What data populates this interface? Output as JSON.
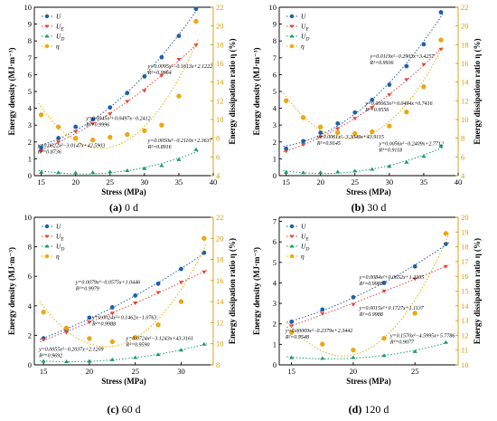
{
  "colors": {
    "U": "#1f5fa8",
    "Ue": "#e4463e",
    "Ud": "#1e9a6a",
    "eta": "#f2a900",
    "eta_axis": "#d89a00"
  },
  "axis_labels": {
    "x": "Stress (MPa)",
    "y_left": "Energy density (MJ·m⁻³)",
    "y_right": "Energy dissipation ratio η (%)"
  },
  "legend": {
    "U": "U",
    "Ue": "U",
    "Ue_sub": "E",
    "Ud": "U",
    "Ud_sub": "D",
    "eta": "η"
  },
  "chart_data": [
    {
      "type": "scatter",
      "caption_id": "(a)",
      "caption_text": " 0 d",
      "xlim": [
        14,
        40
      ],
      "xticks": [
        15,
        20,
        25,
        30,
        35,
        40
      ],
      "ylim": [
        0,
        10
      ],
      "yticks": [
        0,
        1,
        2,
        3,
        4,
        5,
        6,
        7,
        8,
        9,
        10
      ],
      "y2lim": [
        4,
        22
      ],
      "y2ticks": [
        4,
        6,
        8,
        10,
        12,
        14,
        16,
        18,
        20,
        22
      ],
      "series": [
        {
          "name": "U",
          "x": [
            15,
            17.5,
            20,
            22.5,
            25,
            27.5,
            30,
            32.5,
            35,
            37.5
          ],
          "values": [
            1.66,
            2.23,
            2.9,
            3.34,
            4.05,
            4.91,
            5.89,
            7.03,
            8.3,
            9.9
          ]
        },
        {
          "name": "Ue",
          "x": [
            15,
            17.5,
            20,
            22.5,
            25,
            27.5,
            30,
            32.5,
            35,
            37.5
          ],
          "values": [
            1.46,
            2.0,
            2.62,
            3.08,
            3.67,
            4.4,
            5.05,
            5.95,
            6.9,
            7.75
          ]
        },
        {
          "name": "Ud",
          "x": [
            15,
            17.5,
            20,
            22.5,
            25,
            27.5,
            30,
            32.5,
            35,
            37.5
          ],
          "values": [
            0.2,
            0.18,
            0.17,
            0.19,
            0.23,
            0.3,
            0.42,
            0.6,
            0.95,
            1.55
          ]
        },
        {
          "name": "η",
          "axis": "right",
          "x": [
            15,
            17.5,
            20,
            22.5,
            25,
            27.5,
            30,
            32.5,
            35,
            37.5
          ],
          "values": [
            10.5,
            9.2,
            8.0,
            7.8,
            8.1,
            8.4,
            8.8,
            9.4,
            12.5,
            20.5
          ]
        }
      ],
      "annotations": [
        {
          "series": "U",
          "at": [
            30.5,
            6.4
          ],
          "line1": "y=0.0095x²−0.1613x+2.1222",
          "line2": "R²=0.9964"
        },
        {
          "series": "Ue",
          "at": [
            21.5,
            3.3
          ],
          "line1": "y=0.0045x²+0.0497x−0.2412",
          "line2": "R²=0.9996"
        },
        {
          "series": "η",
          "at": [
            14.5,
            1.7
          ],
          "line1": "y=0.0622x²−3.0147x+42.5903",
          "line2": "R²=0.8736"
        },
        {
          "series": "Ud",
          "at": [
            30.5,
            2.0
          ],
          "line1": "y=0.0050x²−0.2110x+2.3637",
          "line2": "R²=0.8916"
        }
      ]
    },
    {
      "type": "scatter",
      "caption_id": "(b)",
      "caption_text": " 30 d",
      "xlim": [
        14,
        40
      ],
      "xticks": [
        15,
        20,
        25,
        30,
        35,
        40
      ],
      "ylim": [
        0,
        10
      ],
      "yticks": [
        0,
        1,
        2,
        3,
        4,
        5,
        6,
        7,
        8,
        9,
        10
      ],
      "y2lim": [
        4,
        22
      ],
      "y2ticks": [
        4,
        6,
        8,
        10,
        12,
        14,
        16,
        18,
        20,
        22
      ],
      "series": [
        {
          "name": "U",
          "x": [
            15,
            17.5,
            20,
            22.5,
            25,
            27.5,
            30,
            32.5,
            35,
            37.5
          ],
          "values": [
            1.6,
            2.05,
            2.55,
            3.1,
            3.75,
            4.5,
            5.4,
            6.5,
            7.8,
            9.7
          ]
        },
        {
          "name": "Ue",
          "x": [
            15,
            17.5,
            20,
            22.5,
            25,
            27.5,
            30,
            32.5,
            35,
            37.5
          ],
          "values": [
            1.45,
            1.85,
            2.3,
            2.8,
            3.4,
            4.05,
            4.8,
            5.7,
            6.6,
            7.5
          ]
        },
        {
          "name": "Ud",
          "x": [
            15,
            17.5,
            20,
            22.5,
            25,
            27.5,
            30,
            32.5,
            35,
            37.5
          ],
          "values": [
            0.2,
            0.18,
            0.19,
            0.22,
            0.28,
            0.38,
            0.55,
            0.8,
            1.15,
            1.75
          ]
        },
        {
          "name": "η",
          "axis": "right",
          "x": [
            15,
            17.5,
            20,
            22.5,
            25,
            27.5,
            30,
            32.5,
            35,
            37.5
          ],
          "values": [
            12.0,
            10.2,
            9.2,
            8.6,
            8.5,
            8.7,
            9.3,
            10.8,
            13.5,
            18.5
          ]
        }
      ],
      "annotations": [
        {
          "series": "U",
          "at": [
            27.2,
            7.0
          ],
          "line1": "y=0.0119x²−0.2903x+3.4257",
          "line2": "R²=0.9936"
        },
        {
          "series": "Ue",
          "at": [
            26.5,
            4.2
          ],
          "line1": "y=0.00063x²+0.0494x+0.7416",
          "line2": "R²=0.9556"
        },
        {
          "series": "η",
          "at": [
            19.5,
            2.2
          ],
          "line1": "y=0.0061x²−3.3049x+43.9115",
          "line2": "R²=0.9145"
        },
        {
          "series": "Ud",
          "at": [
            28.5,
            1.8
          ],
          "line1": "y=0.0056x²−0.2409x+2.7712",
          "line2": "R²=0.9118"
        }
      ]
    },
    {
      "type": "scatter",
      "caption_id": "(c)",
      "caption_text": " 60 d",
      "xlim": [
        14,
        33.5
      ],
      "xticks": [
        15,
        20,
        25,
        30
      ],
      "ylim": [
        0,
        10
      ],
      "yticks": [
        0,
        2,
        4,
        6,
        8,
        10
      ],
      "y2lim": [
        8,
        22
      ],
      "y2ticks": [
        8,
        10,
        12,
        14,
        16,
        18,
        20,
        22
      ],
      "series": [
        {
          "name": "U",
          "x": [
            15,
            17.5,
            20,
            22.5,
            25,
            27.5,
            30,
            32.5
          ],
          "values": [
            1.8,
            2.4,
            3.2,
            3.9,
            4.7,
            5.5,
            6.5,
            7.6
          ]
        },
        {
          "name": "Ue",
          "x": [
            15,
            17.5,
            20,
            22.5,
            25,
            27.5,
            30,
            32.5
          ],
          "values": [
            1.7,
            2.2,
            2.9,
            3.5,
            4.2,
            4.9,
            5.6,
            6.3
          ]
        },
        {
          "name": "Ud",
          "x": [
            15,
            17.5,
            20,
            22.5,
            25,
            27.5,
            30,
            32.5
          ],
          "values": [
            0.25,
            0.22,
            0.25,
            0.35,
            0.5,
            0.7,
            1.0,
            1.4
          ]
        },
        {
          "name": "η",
          "axis": "right",
          "x": [
            15,
            17.5,
            20,
            22.5,
            25,
            27.5,
            30,
            32.5
          ],
          "values": [
            13.0,
            11.5,
            10.5,
            10.2,
            10.6,
            11.8,
            14.0,
            20.0
          ]
        }
      ],
      "annotations": [
        {
          "series": "U",
          "at": [
            18.5,
            5.5
          ],
          "line1": "y=0.0079x²−0.0575x+1.0446",
          "line2": "R²=0.9979"
        },
        {
          "series": "Ue",
          "at": [
            20.3,
            3.1
          ],
          "line1": "y=0.0024x²+0.1462x−1.0763",
          "line2": "R²=0.9988"
        },
        {
          "series": "Ud",
          "at": [
            14.5,
            0.95
          ],
          "line1": "y=0.0055x²−0.2037x+2.1209",
          "line2": "R²=0.9692"
        },
        {
          "series": "η",
          "at": [
            24.0,
            1.7
          ],
          "line1": "y=0.0724x²−3.1243x+43.3161",
          "line2": "R²=0.9590"
        }
      ]
    },
    {
      "type": "scatter",
      "caption_id": "(d)",
      "caption_text": " 120 d",
      "xlim": [
        14,
        28.5
      ],
      "xticks": [
        15,
        20,
        25
      ],
      "ylim": [
        0,
        7.2
      ],
      "yticks": [
        0,
        1,
        2,
        3,
        4,
        5,
        6,
        7
      ],
      "y2lim": [
        10,
        20
      ],
      "y2ticks": [
        10,
        11,
        12,
        13,
        14,
        15,
        16,
        17,
        18,
        19,
        20
      ],
      "series": [
        {
          "name": "U",
          "x": [
            15,
            17.5,
            20,
            22.5,
            25,
            27.5
          ],
          "values": [
            2.1,
            2.7,
            3.3,
            4.0,
            4.8,
            5.9
          ]
        },
        {
          "name": "Ue",
          "x": [
            15,
            17.5,
            20,
            22.5,
            25,
            27.5
          ],
          "values": [
            1.9,
            2.5,
            2.95,
            3.6,
            4.2,
            4.8
          ]
        },
        {
          "name": "Ud",
          "x": [
            15,
            17.5,
            20,
            22.5,
            25,
            27.5
          ],
          "values": [
            0.35,
            0.32,
            0.36,
            0.45,
            0.65,
            1.1
          ]
        },
        {
          "name": "η",
          "axis": "right",
          "x": [
            15,
            17.5,
            20,
            22.5,
            25,
            27.5
          ],
          "values": [
            12.2,
            11.4,
            11.0,
            11.8,
            13.5,
            18.9
          ]
        }
      ],
      "annotations": [
        {
          "series": "U",
          "at": [
            20.5,
            4.2
          ],
          "line1": "y=0.0084x²+0.0652x+1.2305",
          "line2": "R²=0.9985"
        },
        {
          "series": "Ue",
          "at": [
            20.5,
            2.7
          ],
          "line1": "y=0.0015x²+0.1727x+1.1137",
          "line2": "R²=0.9988"
        },
        {
          "series": "Ud",
          "at": [
            14.5,
            1.6
          ],
          "line1": "y=0.00069x²−0.2379x+2.3442",
          "line2": "R²=0.9548"
        },
        {
          "series": "η",
          "at": [
            23.0,
            1.35
          ],
          "line1": "y=0.1570x²−4.5995x+5.7786",
          "line2": "R²=0.9077"
        }
      ]
    }
  ]
}
